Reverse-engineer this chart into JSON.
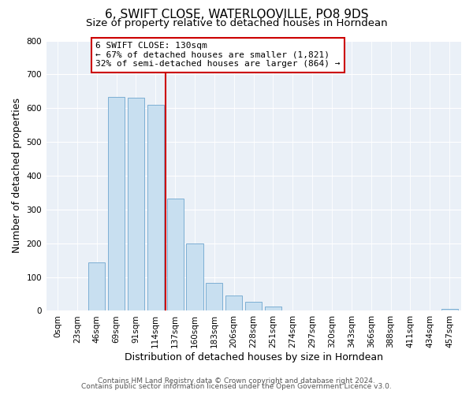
{
  "title": "6, SWIFT CLOSE, WATERLOOVILLE, PO8 9DS",
  "subtitle": "Size of property relative to detached houses in Horndean",
  "xlabel": "Distribution of detached houses by size in Horndean",
  "ylabel": "Number of detached properties",
  "bar_labels": [
    "0sqm",
    "23sqm",
    "46sqm",
    "69sqm",
    "91sqm",
    "114sqm",
    "137sqm",
    "160sqm",
    "183sqm",
    "206sqm",
    "228sqm",
    "251sqm",
    "274sqm",
    "297sqm",
    "320sqm",
    "343sqm",
    "366sqm",
    "388sqm",
    "411sqm",
    "434sqm",
    "457sqm"
  ],
  "bar_values": [
    0,
    0,
    143,
    633,
    631,
    609,
    332,
    200,
    83,
    46,
    27,
    12,
    0,
    0,
    0,
    0,
    0,
    0,
    0,
    0,
    5
  ],
  "bar_color": "#c8dff0",
  "bar_edge_color": "#7dafd4",
  "vline_x_index": 6,
  "vline_color": "#cc0000",
  "annotation_title": "6 SWIFT CLOSE: 130sqm",
  "annotation_line1": "← 67% of detached houses are smaller (1,821)",
  "annotation_line2": "32% of semi-detached houses are larger (864) →",
  "annotation_box_color": "#ffffff",
  "annotation_box_edge": "#cc0000",
  "footer1": "Contains HM Land Registry data © Crown copyright and database right 2024.",
  "footer2": "Contains public sector information licensed under the Open Government Licence v3.0.",
  "ylim": [
    0,
    800
  ],
  "yticks": [
    0,
    100,
    200,
    300,
    400,
    500,
    600,
    700,
    800
  ],
  "bg_color": "#eaf0f7",
  "title_fontsize": 11,
  "subtitle_fontsize": 9.5,
  "label_fontsize": 9,
  "tick_fontsize": 7.5,
  "annotation_fontsize": 8,
  "footer_fontsize": 6.5
}
